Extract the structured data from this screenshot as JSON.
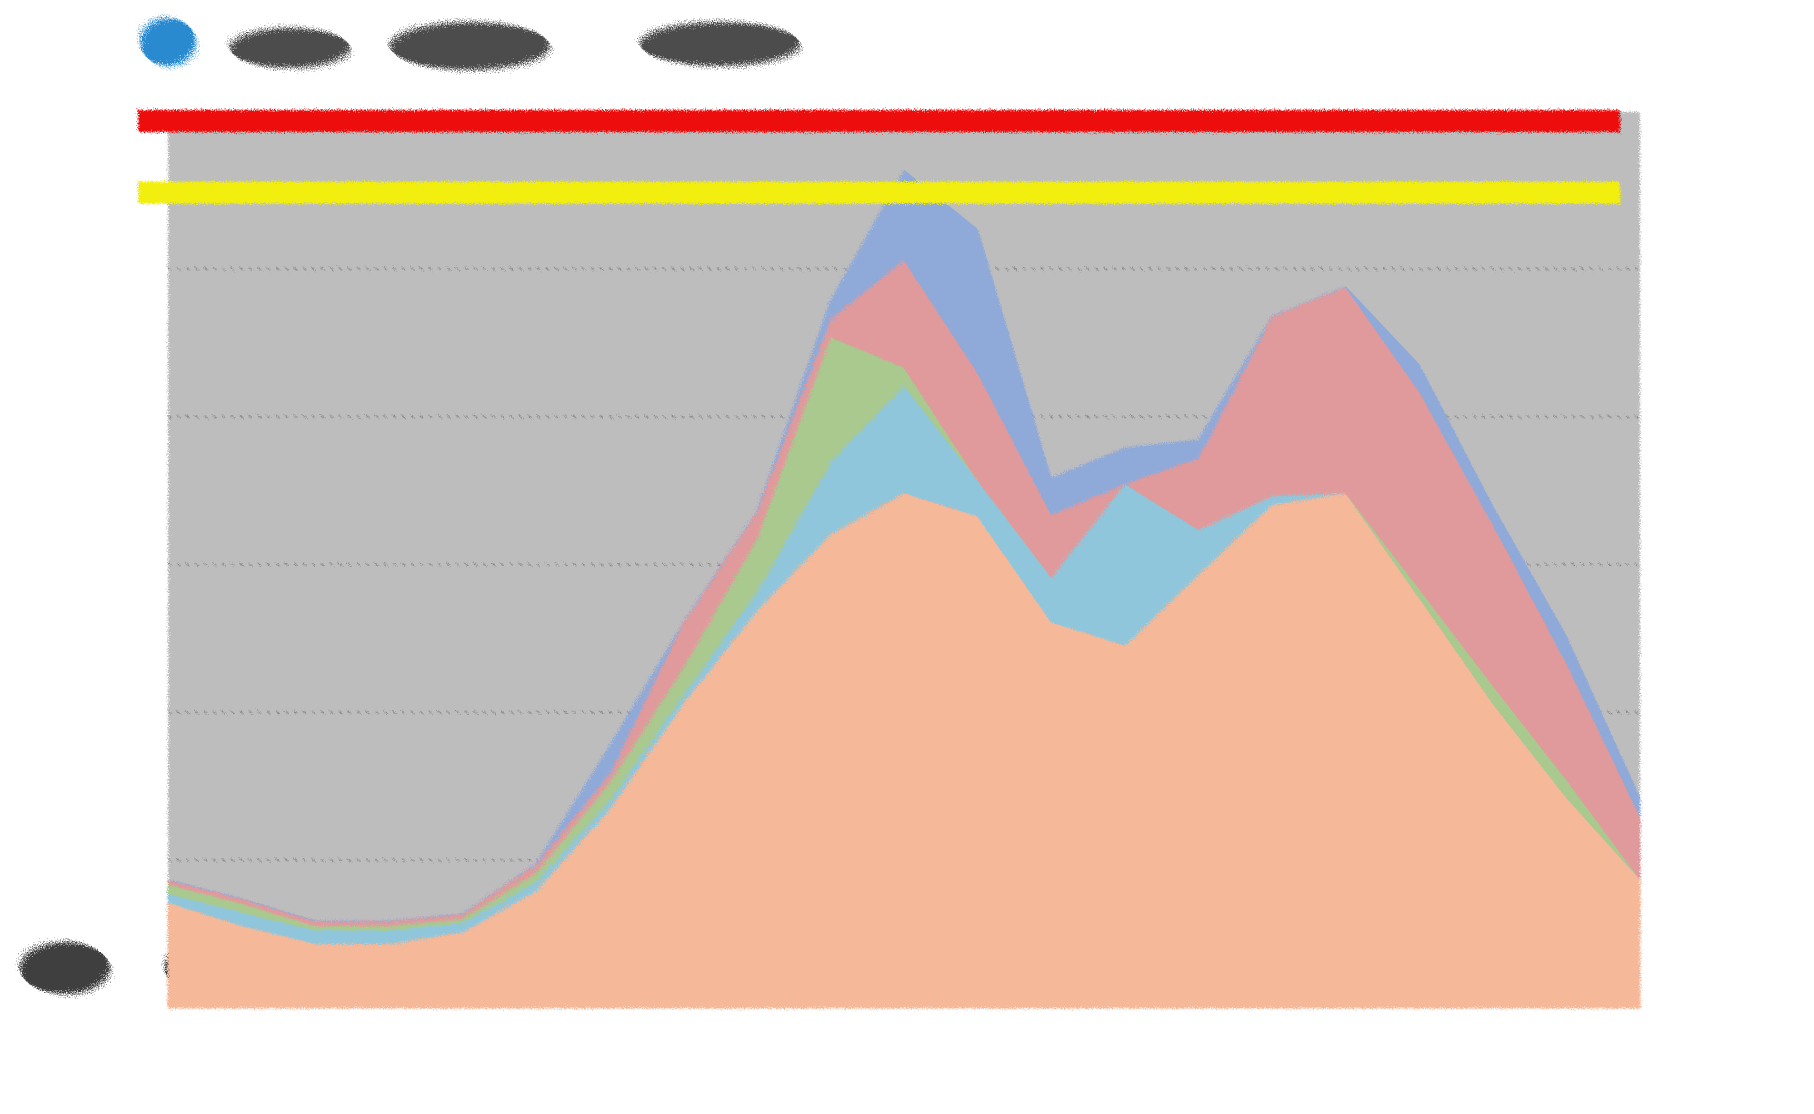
{
  "chart_data": {
    "type": "stacked_area",
    "categories": [
      null,
      null,
      null,
      null,
      null,
      null,
      null,
      null,
      null,
      null,
      null,
      null,
      null,
      null,
      null,
      null,
      null,
      null,
      null,
      null,
      null
    ],
    "series": [
      {
        "color": "#f5b898",
        "values": [
          11.8,
          9.2,
          7.2,
          7.2,
          8.5,
          13.1,
          22.2,
          34,
          44.4,
          52.9,
          57.5,
          54.9,
          43.1,
          40.5,
          48.4,
          56.2,
          57.5,
          45.8,
          34,
          23.5,
          14.4
        ]
      },
      {
        "color": "#8fc6dc",
        "values": [
          1,
          1.5,
          1.5,
          1.5,
          1,
          1,
          1,
          1,
          2,
          8,
          12,
          4,
          5,
          18,
          5,
          1,
          0,
          0,
          0,
          0,
          0
        ]
      },
      {
        "color": "#a9c98f",
        "values": [
          1,
          1,
          0.5,
          0.5,
          0.5,
          1,
          2,
          3,
          6,
          14,
          2,
          0,
          0,
          0,
          0,
          0,
          0,
          1,
          2,
          2,
          0
        ]
      },
      {
        "color": "#e09a9c",
        "values": [
          0.5,
          0.5,
          0.5,
          0.5,
          0.5,
          1,
          1,
          5,
          3,
          2,
          12,
          12,
          7,
          0,
          8,
          20,
          23,
          22,
          18,
          13,
          7
        ]
      },
      {
        "color": "#8fa9d9",
        "values": [
          0,
          0,
          0,
          0,
          0,
          0,
          3,
          0,
          0,
          2,
          10,
          16,
          4,
          4,
          2,
          0,
          0,
          3,
          2,
          3,
          2
        ]
      }
    ],
    "ylim": [
      0,
      100
    ],
    "grid_values": [
      16.5,
      33,
      49.5,
      66,
      82.5
    ],
    "plot_background": "#bdbdbd",
    "reference_lines": [
      {
        "value": 99,
        "color": "#ee1111"
      },
      {
        "value": 91,
        "color": "#f2ee10"
      }
    ]
  }
}
